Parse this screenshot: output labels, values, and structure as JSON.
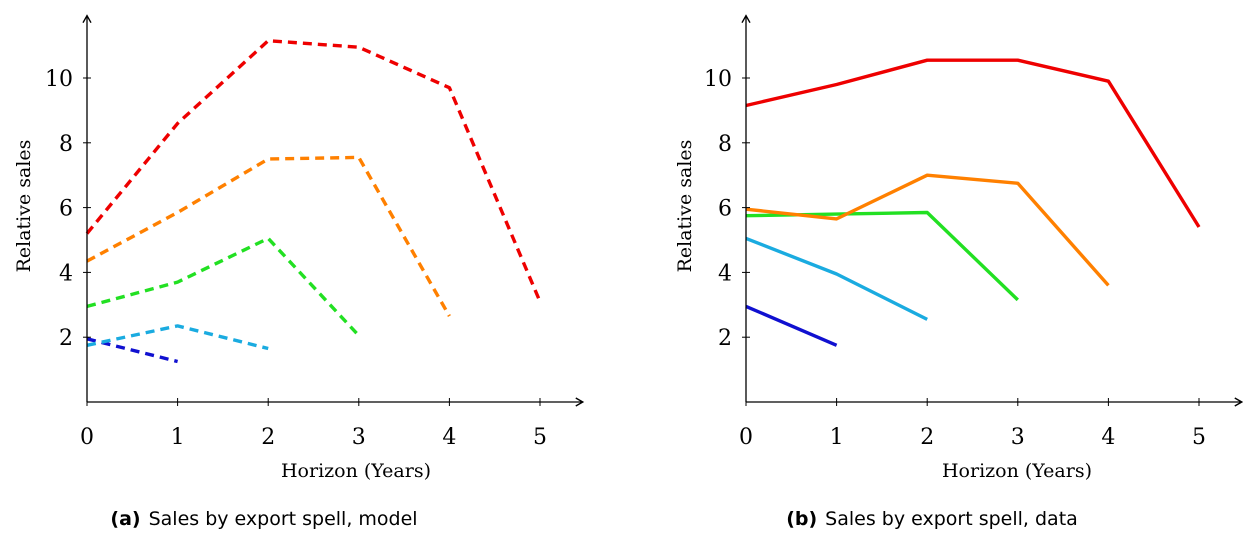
{
  "chart_data": [
    {
      "type": "line",
      "caption_tag": "(a)",
      "caption_text": "Sales by export spell, model",
      "xlabel": "Horizon (Years)",
      "ylabel": "Relative sales",
      "xlim": [
        0,
        5.45
      ],
      "ylim": [
        0,
        11.8
      ],
      "xticks": [
        0,
        1,
        2,
        3,
        4,
        5
      ],
      "yticks": [
        2,
        4,
        6,
        8,
        10
      ],
      "line_style": "dashed",
      "grid": false,
      "series": [
        {
          "color": "#1010d0",
          "x": [
            0,
            1
          ],
          "y": [
            1.95,
            1.25
          ]
        },
        {
          "color": "#1aabe0",
          "x": [
            0,
            1,
            2
          ],
          "y": [
            1.75,
            2.35,
            1.65
          ]
        },
        {
          "color": "#22e022",
          "x": [
            0,
            1,
            2,
            3
          ],
          "y": [
            2.95,
            3.7,
            5.05,
            2.05
          ]
        },
        {
          "color": "#ff8000",
          "x": [
            0,
            1,
            2,
            3,
            4
          ],
          "y": [
            4.35,
            5.85,
            7.5,
            7.55,
            2.65
          ]
        },
        {
          "color": "#ee0000",
          "x": [
            0,
            1,
            2,
            3,
            4,
            5
          ],
          "y": [
            5.2,
            8.6,
            11.15,
            10.95,
            9.7,
            3.1
          ]
        }
      ]
    },
    {
      "type": "line",
      "caption_tag": "(b)",
      "caption_text": "Sales by export spell, data",
      "xlabel": "Horizon (Years)",
      "ylabel": "Relative sales",
      "xlim": [
        0,
        5.45
      ],
      "ylim": [
        0,
        11.8
      ],
      "xticks": [
        0,
        1,
        2,
        3,
        4,
        5
      ],
      "yticks": [
        2,
        4,
        6,
        8,
        10
      ],
      "line_style": "solid",
      "grid": false,
      "series": [
        {
          "color": "#1010d0",
          "x": [
            0,
            1
          ],
          "y": [
            2.95,
            1.75
          ]
        },
        {
          "color": "#1aabe0",
          "x": [
            0,
            1,
            2
          ],
          "y": [
            5.05,
            3.95,
            2.55
          ]
        },
        {
          "color": "#22e022",
          "x": [
            0,
            1,
            2,
            3
          ],
          "y": [
            5.75,
            5.8,
            5.85,
            3.15
          ]
        },
        {
          "color": "#ff8000",
          "x": [
            0,
            1,
            2,
            3,
            4
          ],
          "y": [
            5.95,
            5.65,
            7.0,
            6.75,
            3.6
          ]
        },
        {
          "color": "#ee0000",
          "x": [
            0,
            1,
            2,
            3,
            4,
            5
          ],
          "y": [
            9.15,
            9.8,
            10.55,
            10.55,
            9.9,
            5.4
          ]
        }
      ]
    }
  ]
}
